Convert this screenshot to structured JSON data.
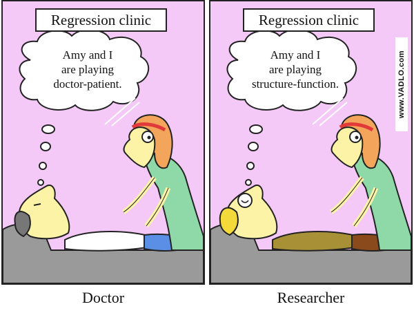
{
  "panels": [
    {
      "title": "Regression clinic",
      "thought_lines": [
        "Amy and I",
        "are playing",
        "doctor-patient."
      ],
      "caption": "Doctor"
    },
    {
      "title": "Regression clinic",
      "thought_lines": [
        "Amy and I",
        "are playing",
        "structure-function."
      ],
      "caption": "Researcher",
      "watermark": "www.VADLO.com"
    }
  ],
  "colors": {
    "background": "#f4c8f7",
    "couch": "#9a9a9a",
    "skin": "#fdf3a6",
    "hair": "#f4a55c",
    "headband": "#e23a3a",
    "scrubs": "#8fd8a8",
    "doctor_shirt": "#ffffff",
    "doctor_pants": "#5b8fe6",
    "researcher_shirt": "#a89036",
    "researcher_pants": "#8b4a1c",
    "patient_hair_left": "#777777",
    "patient_hair_right": "#f3d93a"
  }
}
